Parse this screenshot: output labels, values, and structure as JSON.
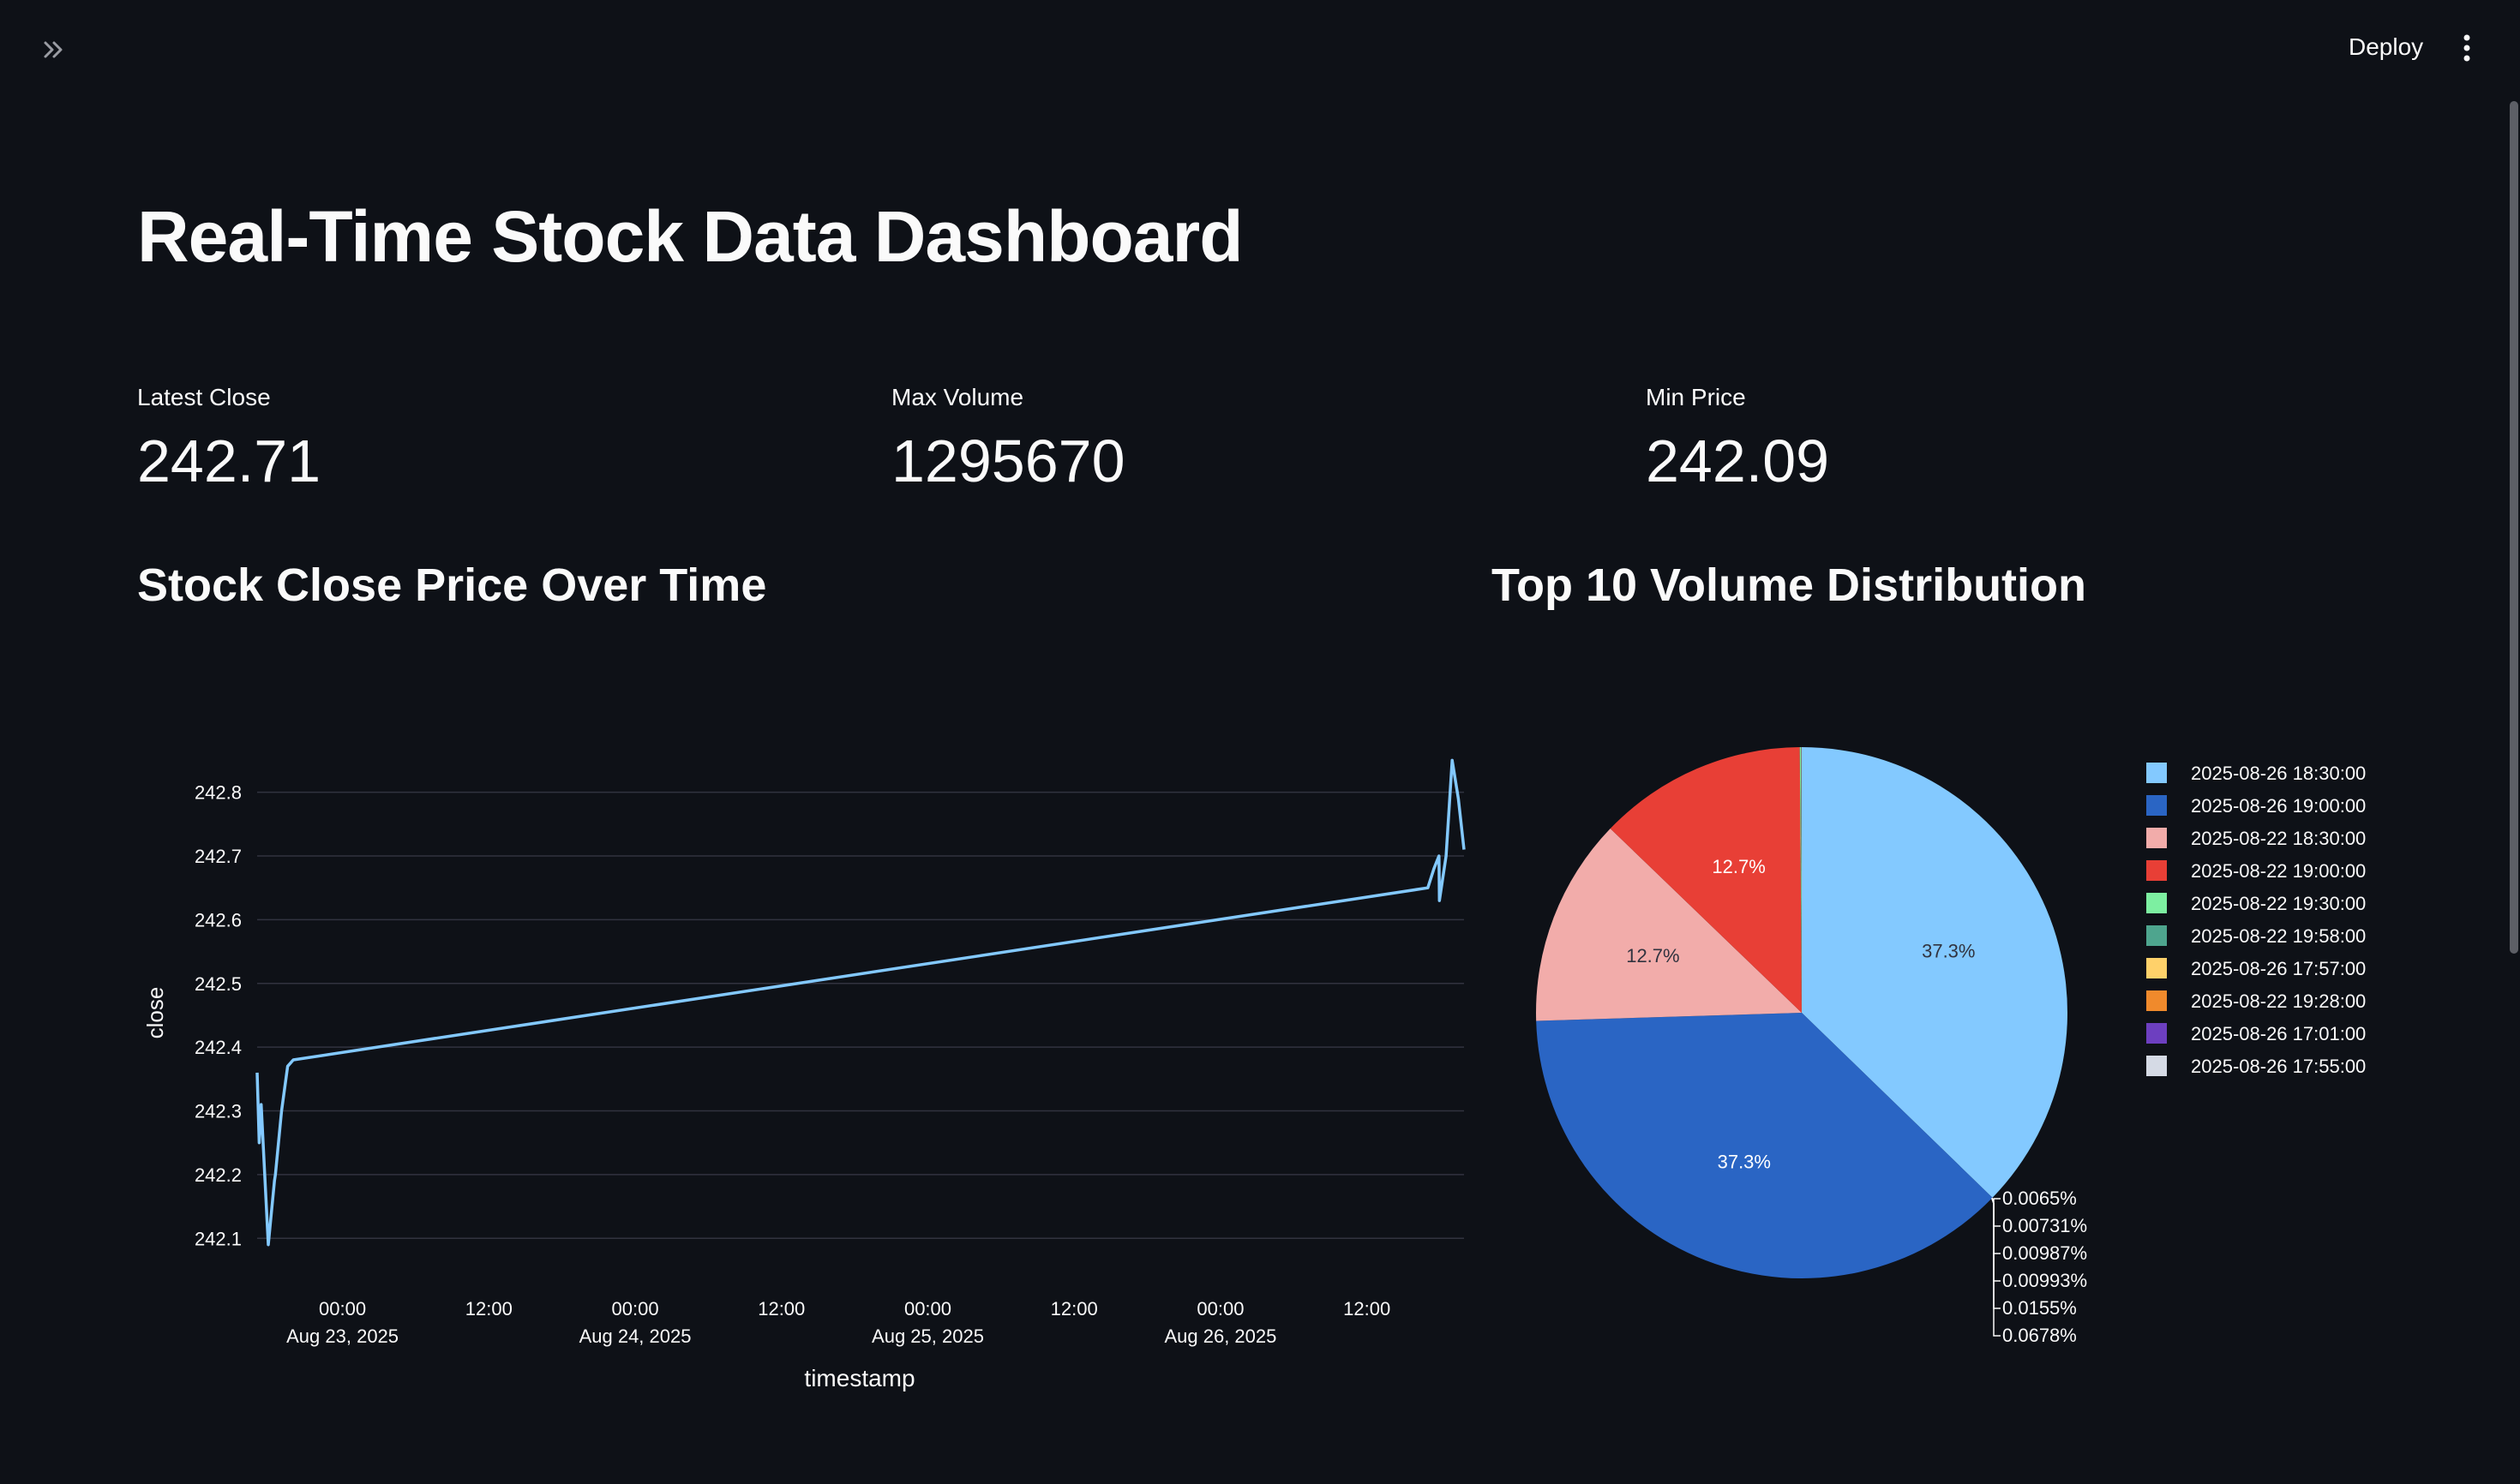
{
  "header": {
    "deploy_label": "Deploy",
    "expand_icon": "double-chevron-right-icon",
    "menu_icon": "vertical-ellipsis-icon"
  },
  "page": {
    "title": "Real-Time Stock Data Dashboard"
  },
  "metrics": [
    {
      "label": "Latest Close",
      "value": "242.71"
    },
    {
      "label": "Max Volume",
      "value": "1295670"
    },
    {
      "label": "Min Price",
      "value": "242.09"
    }
  ],
  "sections": {
    "line_title": "Stock Close Price Over Time",
    "pie_title": "Top 10 Volume Distribution"
  },
  "colors": {
    "background": "#0e1117",
    "line": "#83c9ff",
    "grid": "#31333f",
    "text": "#fafafa"
  },
  "chart_data": [
    {
      "type": "line",
      "xlabel": "timestamp",
      "ylabel": "close",
      "ylim": [
        242.06,
        242.86
      ],
      "xlim": [
        "2025-08-22 17:00",
        "2025-08-26 19:58"
      ],
      "yticks": [
        242.1,
        242.2,
        242.3,
        242.4,
        242.5,
        242.6,
        242.7,
        242.8
      ],
      "yticklabels": [
        "242.1",
        "242.2",
        "242.3",
        "242.4",
        "242.5",
        "242.6",
        "242.7",
        "242.8"
      ],
      "xticks": [
        {
          "t": "2025-08-23 00:00",
          "line1": "00:00",
          "line2": "Aug 23, 2025"
        },
        {
          "t": "2025-08-23 12:00",
          "line1": "12:00",
          "line2": ""
        },
        {
          "t": "2025-08-24 00:00",
          "line1": "00:00",
          "line2": "Aug 24, 2025"
        },
        {
          "t": "2025-08-24 12:00",
          "line1": "12:00",
          "line2": ""
        },
        {
          "t": "2025-08-25 00:00",
          "line1": "00:00",
          "line2": "Aug 25, 2025"
        },
        {
          "t": "2025-08-25 12:00",
          "line1": "12:00",
          "line2": ""
        },
        {
          "t": "2025-08-26 00:00",
          "line1": "00:00",
          "line2": "Aug 26, 2025"
        },
        {
          "t": "2025-08-26 12:00",
          "line1": "12:00",
          "line2": ""
        }
      ],
      "series": [
        {
          "x": [
            "2025-08-22 17:00",
            "2025-08-22 17:10",
            "2025-08-22 17:20",
            "2025-08-22 17:55",
            "2025-08-22 18:25",
            "2025-08-22 18:30",
            "2025-08-22 19:00",
            "2025-08-22 19:30",
            "2025-08-22 19:58",
            "2025-08-26 17:00",
            "2025-08-26 17:30",
            "2025-08-26 17:55",
            "2025-08-26 17:57",
            "2025-08-26 18:30",
            "2025-08-26 19:00",
            "2025-08-26 19:30",
            "2025-08-26 19:58"
          ],
          "y": [
            242.36,
            242.25,
            242.31,
            242.09,
            242.19,
            242.2,
            242.3,
            242.37,
            242.38,
            242.65,
            242.68,
            242.7,
            242.63,
            242.7,
            242.85,
            242.79,
            242.71
          ]
        }
      ]
    },
    {
      "type": "pie",
      "legend_position": "right",
      "slices": [
        {
          "label": "2025-08-26 18:30:00",
          "value": 37.3,
          "pct_label": "37.3%",
          "color": "#83c9ff"
        },
        {
          "label": "2025-08-26 19:00:00",
          "value": 37.3,
          "pct_label": "37.3%",
          "color": "#2a65c4"
        },
        {
          "label": "2025-08-22 18:30:00",
          "value": 12.7,
          "pct_label": "12.7%",
          "color": "#f2acaa"
        },
        {
          "label": "2025-08-22 19:00:00",
          "value": 12.7,
          "pct_label": "12.7%",
          "color": "#e83f36"
        },
        {
          "label": "2025-08-22 19:30:00",
          "value": 0.0678,
          "pct_label": "0.0678%",
          "color": "#7defa1"
        },
        {
          "label": "2025-08-22 19:58:00",
          "value": 0.0155,
          "pct_label": "0.0155%",
          "color": "#4ea58e"
        },
        {
          "label": "2025-08-26 17:57:00",
          "value": 0.00993,
          "pct_label": "0.00993%",
          "color": "#ffd16a"
        },
        {
          "label": "2025-08-22 19:28:00",
          "value": 0.00987,
          "pct_label": "0.00987%",
          "color": "#f08a2c"
        },
        {
          "label": "2025-08-26 17:01:00",
          "value": 0.00731,
          "pct_label": "0.00731%",
          "color": "#6d3fc0"
        },
        {
          "label": "2025-08-26 17:55:00",
          "value": 0.0065,
          "pct_label": "0.0065%",
          "color": "#d5dae5"
        }
      ]
    }
  ]
}
